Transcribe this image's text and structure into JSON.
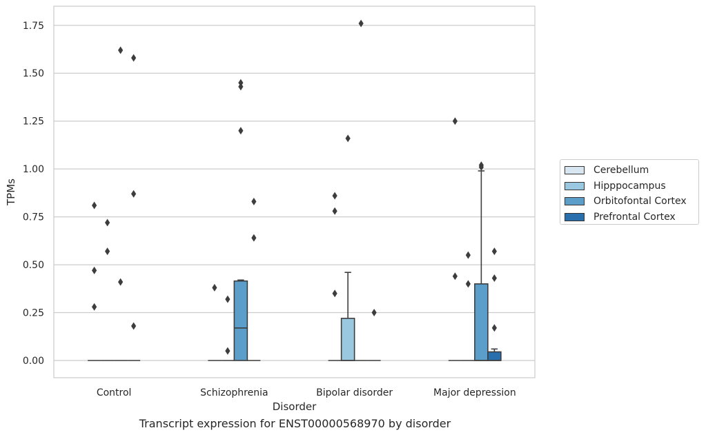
{
  "chart_data": {
    "type": "boxplot",
    "title": "",
    "caption": "Transcript expression for ENST00000568970 by disorder",
    "xlabel": "Disorder",
    "ylabel": "TPMs",
    "ylim": [
      -0.09,
      1.85
    ],
    "yticks": [
      "0.00",
      "0.25",
      "0.50",
      "0.75",
      "1.00",
      "1.25",
      "1.50",
      "1.75"
    ],
    "ytick_values": [
      0,
      0.25,
      0.5,
      0.75,
      1.0,
      1.25,
      1.5,
      1.75
    ],
    "grid": true,
    "legend_position": "right",
    "categories": [
      "Control",
      "Schizophrenia",
      "Bipolar disorder",
      "Major depression"
    ],
    "series": [
      {
        "name": "Cerebellum",
        "color": "#d8e6f2",
        "boxes": [
          {
            "q1": 0,
            "median": 0,
            "q3": 0,
            "whisker_low": 0,
            "whisker_high": 0,
            "outliers": [
              0.81,
              0.47,
              0.28
            ]
          },
          {
            "q1": 0,
            "median": 0,
            "q3": 0,
            "whisker_low": 0,
            "whisker_high": 0,
            "outliers": [
              0.38
            ]
          },
          {
            "q1": 0,
            "median": 0,
            "q3": 0,
            "whisker_low": 0,
            "whisker_high": 0,
            "outliers": [
              0.86,
              0.78,
              0.35
            ]
          },
          {
            "q1": 0,
            "median": 0,
            "q3": 0,
            "whisker_low": 0,
            "whisker_high": 0,
            "outliers": [
              1.25,
              0.44
            ]
          }
        ]
      },
      {
        "name": "Hipppocampus",
        "color": "#9ac8e0",
        "boxes": [
          {
            "q1": 0,
            "median": 0,
            "q3": 0,
            "whisker_low": 0,
            "whisker_high": 0,
            "outliers": [
              0.72,
              0.57
            ]
          },
          {
            "q1": 0,
            "median": 0,
            "q3": 0,
            "whisker_low": 0,
            "whisker_high": 0,
            "outliers": [
              0.32,
              0.05
            ]
          },
          {
            "q1": 0,
            "median": 0,
            "q3": 0.22,
            "whisker_low": 0,
            "whisker_high": 0.46,
            "outliers": [
              1.16
            ]
          },
          {
            "q1": 0,
            "median": 0,
            "q3": 0,
            "whisker_low": 0,
            "whisker_high": 0,
            "outliers": [
              0.55,
              0.4
            ]
          }
        ]
      },
      {
        "name": "Orbitofontal Cortex",
        "color": "#5a9ec9",
        "boxes": [
          {
            "q1": 0,
            "median": 0,
            "q3": 0,
            "whisker_low": 0,
            "whisker_high": 0,
            "outliers": [
              1.62,
              0.41
            ]
          },
          {
            "q1": 0,
            "median": 0.17,
            "q3": 0.415,
            "whisker_low": 0,
            "whisker_high": 0.42,
            "outliers": [
              1.45,
              1.43,
              1.2
            ]
          },
          {
            "q1": 0,
            "median": 0,
            "q3": 0,
            "whisker_low": 0,
            "whisker_high": 0,
            "outliers": [
              1.76
            ]
          },
          {
            "q1": 0,
            "median": 0,
            "q3": 0.4,
            "whisker_low": 0,
            "whisker_high": 0.99,
            "outliers": [
              1.02,
              1.01
            ]
          }
        ]
      },
      {
        "name": "Prefrontal Cortex",
        "color": "#2a6fad",
        "boxes": [
          {
            "q1": 0,
            "median": 0,
            "q3": 0,
            "whisker_low": 0,
            "whisker_high": 0,
            "outliers": [
              1.58,
              0.87,
              0.18
            ]
          },
          {
            "q1": 0,
            "median": 0,
            "q3": 0,
            "whisker_low": 0,
            "whisker_high": 0,
            "outliers": [
              0.83,
              0.64
            ]
          },
          {
            "q1": 0,
            "median": 0,
            "q3": 0,
            "whisker_low": 0,
            "whisker_high": 0,
            "outliers": [
              0.25
            ]
          },
          {
            "q1": 0,
            "median": 0,
            "q3": 0.045,
            "whisker_low": 0,
            "whisker_high": 0.06,
            "outliers": [
              0.57,
              0.43,
              0.17
            ]
          }
        ]
      }
    ]
  }
}
